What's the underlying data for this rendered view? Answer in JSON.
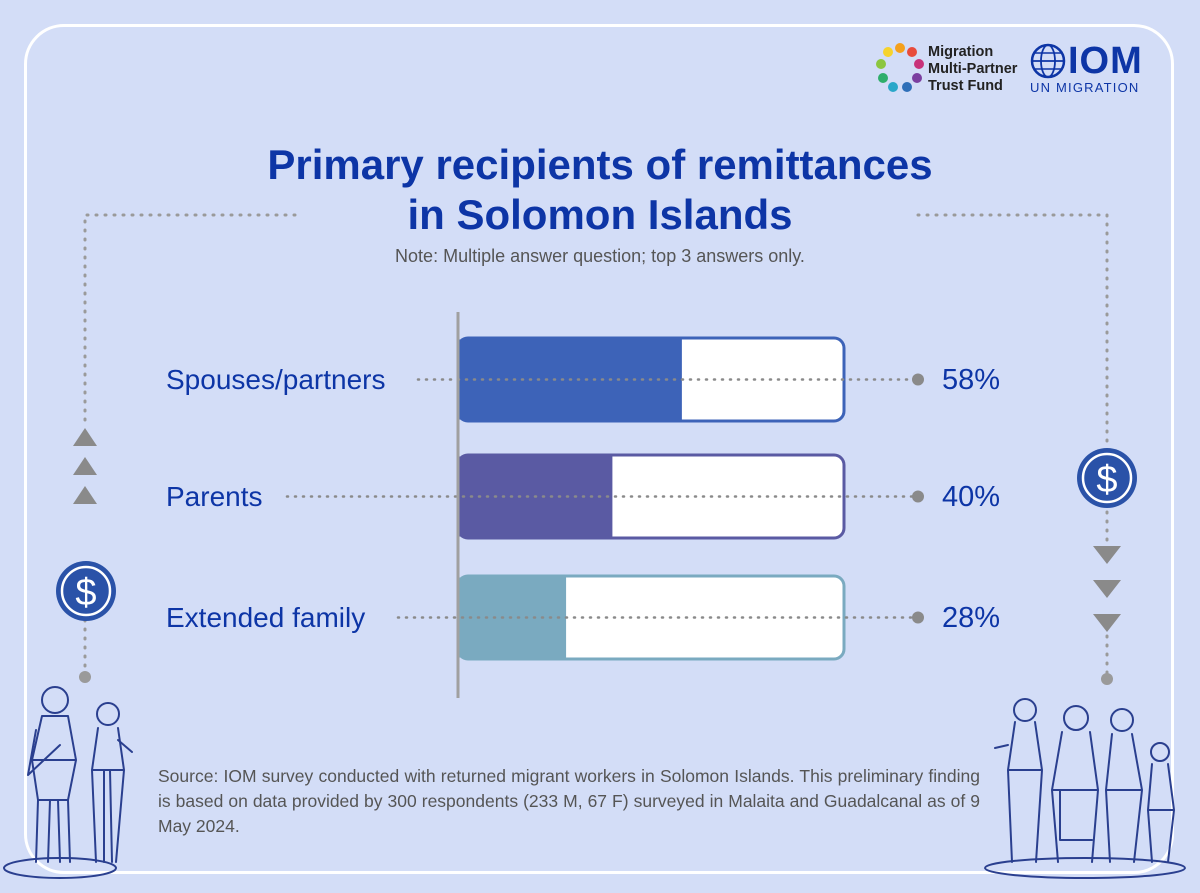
{
  "title_line1": "Primary recipients of remittances",
  "title_line2": "in Solomon Islands",
  "note": "Note: Multiple answer question; top 3 answers only.",
  "source": "Source: IOM survey conducted with returned migrant workers in Solomon Islands. This preliminary finding is based on data provided by 300 respondents (233 M, 67 F) surveyed in Malaita and Guadalcanal as of 9 May 2024.",
  "logos": {
    "mptf_lines": [
      "Migration",
      "Multi-Partner",
      "Trust Fund"
    ],
    "iom_name": "IOM",
    "iom_tagline": "UN MIGRATION"
  },
  "colors": {
    "background": "#d3ddf7",
    "title": "#0d35a6",
    "bar_spouses": "#3d63b8",
    "bar_parents": "#5a5aa3",
    "bar_extended": "#7aaac0",
    "icon_blue": "#2a52a8",
    "arrow_gray": "#8a8a8a"
  },
  "chart_data": {
    "type": "bar",
    "orientation": "horizontal",
    "categories": [
      "Spouses/partners",
      "Parents",
      "Extended family"
    ],
    "values": [
      58,
      40,
      28
    ],
    "value_labels": [
      "58%",
      "40%",
      "28%"
    ],
    "unit": "%",
    "xlim": [
      0,
      100
    ],
    "grid": false
  }
}
